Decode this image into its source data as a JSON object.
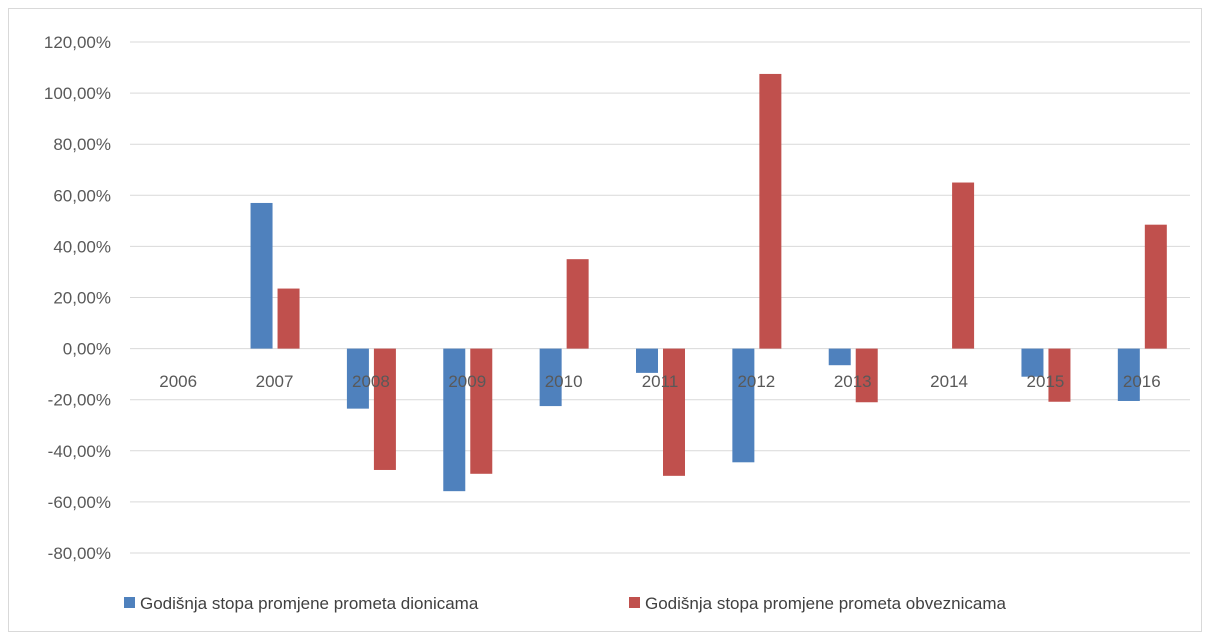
{
  "chart_data": {
    "type": "bar",
    "categories": [
      "2006",
      "2007",
      "2008",
      "2009",
      "2010",
      "2011",
      "2012",
      "2013",
      "2014",
      "2015",
      "2016"
    ],
    "series": [
      {
        "name": "Godišnja stopa promjene prometa dionicama",
        "color": "#4f81bd",
        "values": [
          0,
          57.0,
          -23.5,
          -55.8,
          -22.5,
          -9.5,
          -44.5,
          -6.5,
          0,
          -11.0,
          -20.5
        ]
      },
      {
        "name": "Godišnja stopa promjene prometa obveznicama",
        "color": "#c0504d",
        "values": [
          0,
          23.5,
          -47.5,
          -49.0,
          35.0,
          -49.8,
          107.5,
          -21.0,
          65.0,
          -20.8,
          48.5
        ]
      }
    ],
    "ylim": [
      -80,
      120
    ],
    "yticks": [
      120,
      100,
      80,
      60,
      40,
      20,
      0,
      -20,
      -40,
      -60,
      -80
    ],
    "ytick_labels": [
      "120,00%",
      "100,00%",
      "80,00%",
      "60,00%",
      "40,00%",
      "20,00%",
      "0,00%",
      "-20,00%",
      "-40,00%",
      "-60,00%",
      "-80,00%"
    ],
    "grid": true,
    "legend_position": "bottom",
    "title": "",
    "xlabel": "",
    "ylabel": ""
  }
}
